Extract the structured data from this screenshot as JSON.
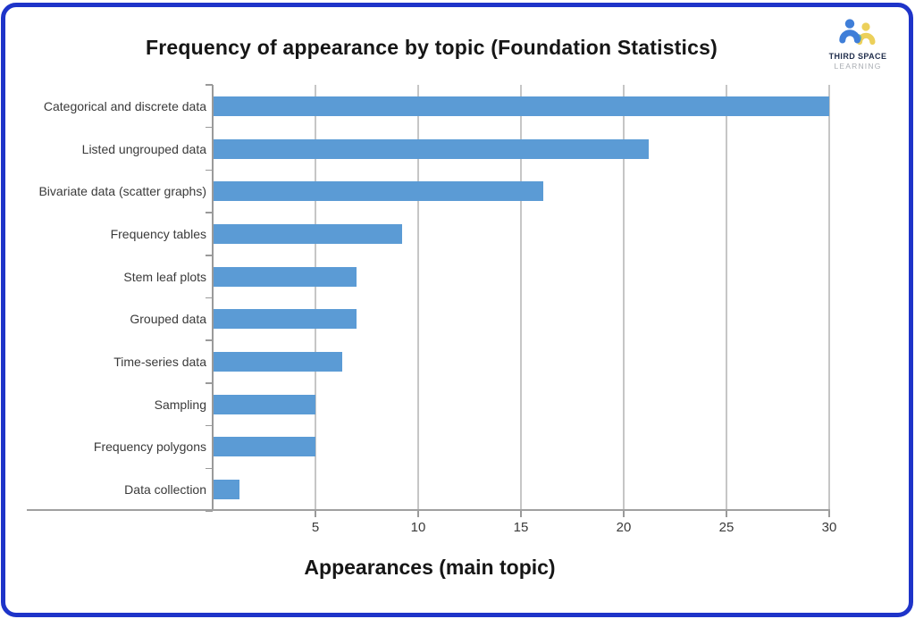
{
  "page": {
    "frame_color": "#1e34c9",
    "background": "#ffffff"
  },
  "logo": {
    "line1": "THIRD SPACE",
    "line2": "LEARNING",
    "colors": {
      "blue": "#3f7ed8",
      "yellow": "#ecd05a",
      "teal": "#6fb59c",
      "text_dark": "#23304e",
      "text_gray": "#a9adb3"
    }
  },
  "chart_data": {
    "type": "bar",
    "orientation": "horizontal",
    "title": "Frequency of appearance by topic (Foundation Statistics)",
    "xlabel": "Appearances (main topic)",
    "ylabel": "",
    "categories": [
      "Categorical and discrete data",
      "Listed ungrouped data",
      "Bivariate data (scatter graphs)",
      "Frequency tables",
      "Stem leaf plots",
      "Grouped data",
      "Time-series data",
      "Sampling",
      "Frequency polygons",
      "Data collection"
    ],
    "values": [
      30,
      21.2,
      16.1,
      9.2,
      7,
      7,
      6.3,
      5,
      5,
      1.3
    ],
    "xlim": [
      0,
      30
    ],
    "xticks": [
      5,
      10,
      15,
      20,
      25,
      30
    ],
    "grid": true,
    "legend": "none",
    "bar_color": "#5b9bd5",
    "gridline_color": "#c6c6c6",
    "axis_color": "#9a9a9a"
  }
}
